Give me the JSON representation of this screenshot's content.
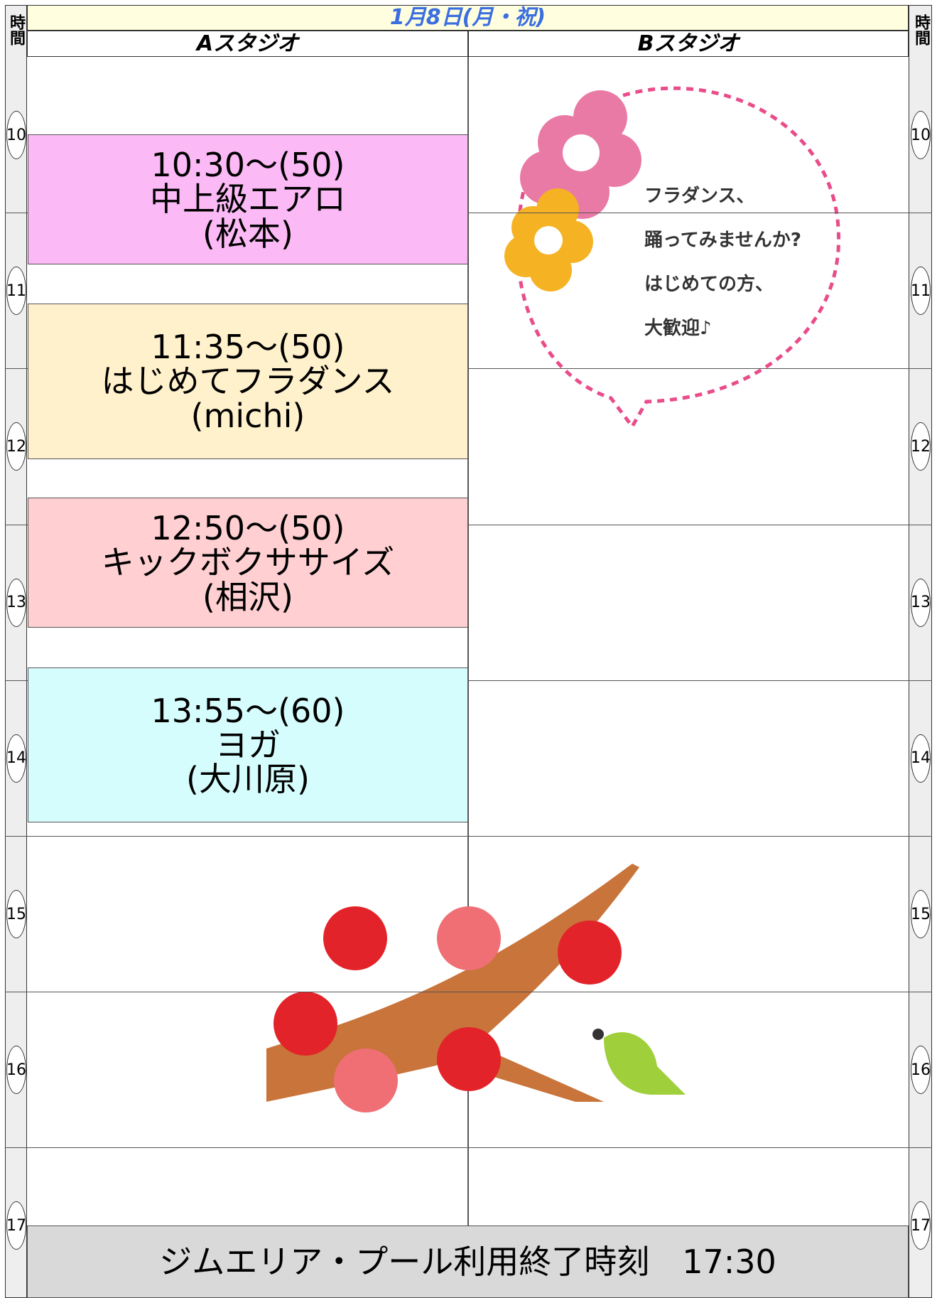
{
  "header": {
    "time_label": "時間",
    "date": "1月8日(月・祝)",
    "studios": [
      "Aスタジオ",
      "Bスタジオ"
    ]
  },
  "hours": [
    "10",
    "11",
    "12",
    "13",
    "14",
    "15",
    "16",
    "17"
  ],
  "classes": [
    {
      "time": "10:30〜(50)",
      "name": "中上級エアロ",
      "instructor": "(松本)"
    },
    {
      "time": "11:35〜(50)",
      "name": "はじめてフラダンス",
      "instructor": "(michi)"
    },
    {
      "time": "12:50〜(50)",
      "name": "キックボクササイズ",
      "instructor": "(相沢)"
    },
    {
      "time": "13:55〜(60)",
      "name": "ヨガ",
      "instructor": "(大川原)"
    }
  ],
  "bubble": {
    "lines": [
      "フラダンス、",
      "踊ってみませんか?",
      "はじめての方、",
      "大歓迎♪"
    ]
  },
  "footer": "ジムエリア・プール利用終了時刻　17:30"
}
